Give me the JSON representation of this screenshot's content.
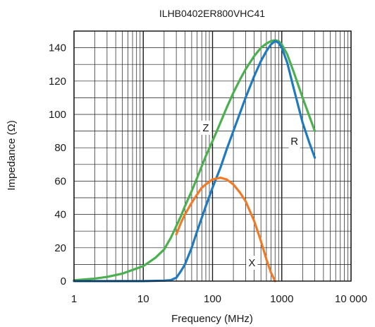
{
  "chart_data": {
    "type": "line",
    "title": "ILHB0402ER800VHC41",
    "xlabel": "Frequency (MHz)",
    "ylabel": "Impedance (Ω)",
    "x_scale": "log",
    "xlim": [
      1,
      10000
    ],
    "ylim": [
      0,
      150
    ],
    "grid": true,
    "x_ticks": [
      1,
      10,
      100,
      1000,
      10000
    ],
    "x_tick_labels": [
      "1",
      "10",
      "100",
      "1000",
      "10 000"
    ],
    "y_ticks": [
      0,
      20,
      40,
      60,
      80,
      100,
      120,
      140
    ],
    "y_tick_labels": [
      "0",
      "20",
      "40",
      "60",
      "80",
      "100",
      "120",
      "140"
    ],
    "series": [
      {
        "name": "Z",
        "color": "#4caf50",
        "x": [
          1,
          2,
          3,
          5,
          10,
          15,
          20,
          25,
          30,
          35,
          40,
          50,
          60,
          70,
          80,
          100,
          130,
          160,
          200,
          250,
          300,
          400,
          500,
          600,
          700,
          800,
          900,
          1000,
          1200,
          1500,
          2000,
          2500,
          3000
        ],
        "y": [
          0.5,
          1.5,
          2.5,
          4.5,
          9,
          14,
          19,
          26,
          33,
          39,
          45,
          54,
          62,
          69,
          75,
          84,
          95,
          104,
          113,
          121,
          127,
          135,
          140,
          142.5,
          144,
          144.5,
          144,
          142,
          136,
          125,
          110,
          99,
          90
        ]
      },
      {
        "name": "R",
        "color": "#1f7abf",
        "x": [
          1,
          5,
          10,
          20,
          25,
          30,
          35,
          40,
          50,
          60,
          70,
          80,
          100,
          130,
          160,
          200,
          250,
          300,
          400,
          500,
          600,
          700,
          800,
          900,
          1000,
          1200,
          1500,
          2000,
          2500,
          3000
        ],
        "y": [
          0,
          0,
          0,
          0.3,
          0.6,
          2,
          6,
          10,
          20,
          30,
          38,
          45,
          56,
          68,
          79,
          90,
          101,
          110,
          123,
          132,
          138,
          142,
          144,
          143,
          140,
          131,
          115,
          95,
          83,
          74
        ]
      },
      {
        "name": "X",
        "color": "#f07a26",
        "x": [
          30,
          35,
          40,
          50,
          60,
          70,
          80,
          100,
          130,
          160,
          200,
          250,
          300,
          400,
          500,
          600,
          700,
          800
        ],
        "y": [
          28,
          35,
          40,
          47,
          52,
          56,
          58,
          61,
          62,
          61,
          58,
          53,
          48,
          36,
          24,
          13,
          5,
          0
        ]
      }
    ],
    "annotations": [
      {
        "text": "Z",
        "x": 80,
        "y": 92
      },
      {
        "text": "R",
        "x": 1520,
        "y": 84
      },
      {
        "text": "X",
        "x": 370,
        "y": 11
      }
    ]
  }
}
